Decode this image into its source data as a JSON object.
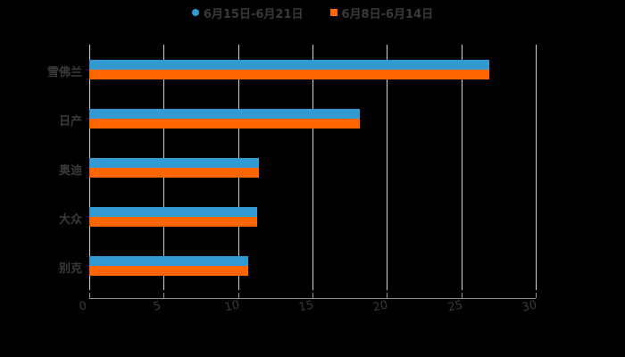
{
  "chart_data": {
    "type": "bar",
    "orientation": "horizontal",
    "title": "",
    "categories": [
      "雪佛兰",
      "日产",
      "奥迪",
      "大众",
      "别克"
    ],
    "series": [
      {
        "name": "6月15日-6月21日",
        "color": "#3399d1",
        "values": [
          26.9,
          18.2,
          11.4,
          11.3,
          10.7
        ]
      },
      {
        "name": "6月8日-6月14日",
        "color": "#ff6600",
        "values": [
          26.9,
          18.2,
          11.4,
          11.3,
          10.7
        ]
      }
    ],
    "xlabel": "",
    "ylabel": "",
    "xlim": [
      0,
      30
    ],
    "xticks": [
      "0",
      "5",
      "10",
      "15",
      "20",
      "25",
      "30"
    ],
    "grid": true,
    "legend_position": "top"
  },
  "legend": [
    {
      "label": "6月15日-6月21日",
      "color": "#3399d1",
      "marker": "circle"
    },
    {
      "label": "6月8日-6月14日",
      "color": "#ff6600",
      "marker": "square"
    }
  ]
}
